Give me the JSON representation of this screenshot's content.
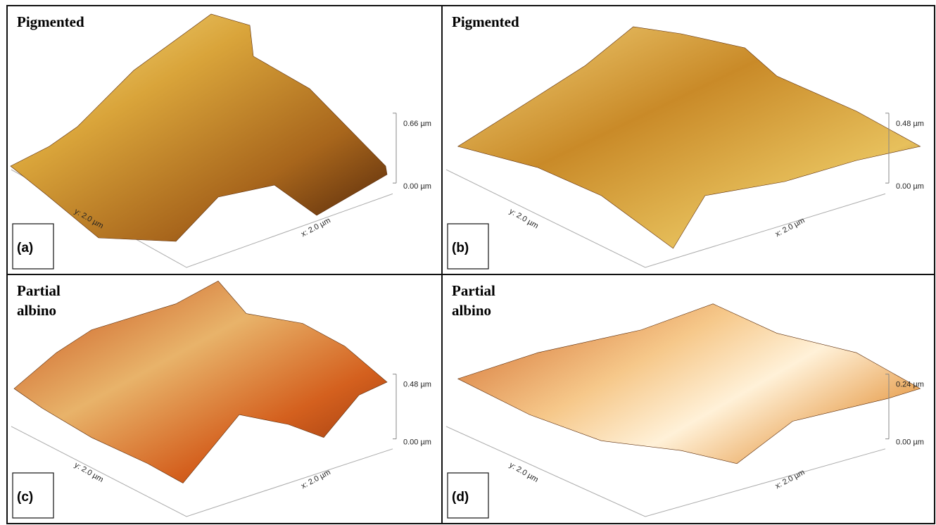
{
  "panels": [
    {
      "title_lines": [
        "Pigmented"
      ],
      "label": "(a)",
      "z_top": "0.66 µm",
      "z_bottom": "0.00 µm",
      "x_axis": "x: 2.0 µm",
      "y_axis": "y: 2.0 µm"
    },
    {
      "title_lines": [
        "Pigmented"
      ],
      "label": "(b)",
      "z_top": "0.48 µm",
      "z_bottom": "0.00 µm",
      "x_axis": "x: 2.0 µm",
      "y_axis": "y: 2.0 µm"
    },
    {
      "title_lines": [
        "Partial",
        "albino"
      ],
      "label": "(c)",
      "z_top": "0.48 µm",
      "z_bottom": "0.00 µm",
      "x_axis": "x: 2.0 µm",
      "y_axis": "y: 2.0 µm"
    },
    {
      "title_lines": [
        "Partial",
        "albino"
      ],
      "label": "(d)",
      "z_top": "0.24 µm",
      "z_bottom": "0.00 µm",
      "x_axis": "x: 2.0 µm",
      "y_axis": "y: 2.0 µm"
    }
  ]
}
